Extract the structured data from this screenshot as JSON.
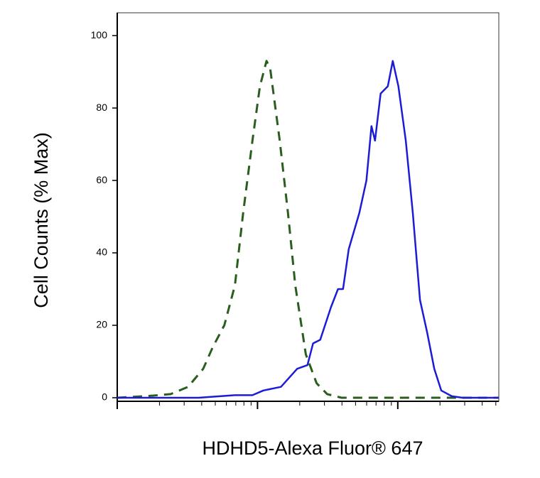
{
  "chart_data": {
    "type": "line",
    "x_label": "HDHD5-Alexa Fluor® 647",
    "y_label": "Cell Counts (% Max)",
    "x_scale": "log",
    "xlim": [
      1,
      525
    ],
    "xticks": [
      1,
      10,
      100
    ],
    "xminorticks": [
      2,
      3,
      4,
      5,
      6,
      7,
      8,
      9,
      20,
      30,
      40,
      50,
      60,
      70,
      80,
      90,
      200,
      300,
      400,
      500
    ],
    "ylim": [
      -0.4,
      106.3
    ],
    "yticks": [
      0,
      20,
      40,
      60,
      80,
      100
    ],
    "series": [
      {
        "color": "#2a5e1e",
        "dashed": true,
        "x": [
          1,
          1.7,
          2.4,
          3.2,
          4.1,
          4.8,
          5.8,
          6.9,
          7.9,
          9.2,
          10.4,
          11.6,
          12.3,
          14.4,
          16.5,
          18.6,
          22.1,
          26.4,
          31.4,
          39.7,
          525
        ],
        "values": [
          0,
          0.5,
          1,
          3,
          8,
          14,
          20,
          31,
          51,
          71,
          86,
          93,
          91,
          71,
          51,
          31,
          12,
          4,
          1,
          0,
          0
        ]
      },
      {
        "color": "#1c1cd6",
        "dashed": false,
        "x": [
          1,
          3.8,
          6.9,
          9.2,
          11,
          14.7,
          19.2,
          22.7,
          24.9,
          28,
          33.4,
          37.5,
          40.7,
          44.7,
          53.2,
          59.8,
          64.9,
          68.8,
          75.5,
          84.9,
          92.1,
          101,
          114,
          128,
          144,
          162,
          182,
          204,
          243,
          290,
          525
        ],
        "values": [
          0,
          0,
          0.7,
          0.7,
          2,
          3,
          8,
          9,
          15,
          16,
          25,
          30,
          30,
          41,
          51,
          60,
          75,
          71,
          84,
          86,
          93,
          86,
          71,
          51,
          27,
          18,
          8,
          2,
          0.4,
          0,
          0
        ]
      }
    ]
  }
}
